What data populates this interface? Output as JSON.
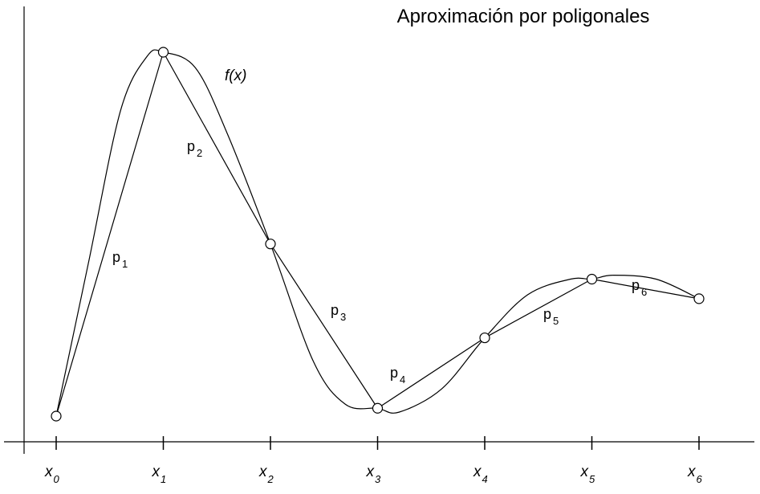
{
  "chart_data": {
    "type": "line",
    "title": "Aproximación por poligonales",
    "xlabel": "",
    "ylabel": "",
    "curve_label": "f(x)",
    "x_ticks": [
      {
        "base": "x",
        "sub": "0"
      },
      {
        "base": "x",
        "sub": "1"
      },
      {
        "base": "x",
        "sub": "2"
      },
      {
        "base": "x",
        "sub": "3"
      },
      {
        "base": "x",
        "sub": "4"
      },
      {
        "base": "x",
        "sub": "5"
      },
      {
        "base": "x",
        "sub": "6"
      }
    ],
    "nodes": {
      "x": [
        0,
        1,
        2,
        3,
        4,
        5,
        6
      ],
      "y": [
        0.07,
        1.0,
        0.51,
        0.09,
        0.27,
        0.42,
        0.37
      ]
    },
    "segments": [
      {
        "base": "p",
        "sub": "1"
      },
      {
        "base": "p",
        "sub": "2"
      },
      {
        "base": "p",
        "sub": "3"
      },
      {
        "base": "p",
        "sub": "4"
      },
      {
        "base": "p",
        "sub": "5"
      },
      {
        "base": "p",
        "sub": "6"
      }
    ],
    "curve": {
      "x": [
        0,
        0.3,
        0.6,
        0.85,
        1,
        1.3,
        1.6,
        2,
        2.4,
        2.7,
        3,
        3.2,
        3.6,
        4,
        4.4,
        4.8,
        5,
        5.2,
        5.6,
        6
      ],
      "y": [
        0.07,
        0.46,
        0.85,
        0.99,
        1.0,
        0.96,
        0.79,
        0.51,
        0.21,
        0.1,
        0.09,
        0.08,
        0.14,
        0.27,
        0.38,
        0.42,
        0.42,
        0.43,
        0.42,
        0.37
      ]
    },
    "axes": {
      "x_axis": true,
      "y_axis": true,
      "grid": false
    }
  }
}
